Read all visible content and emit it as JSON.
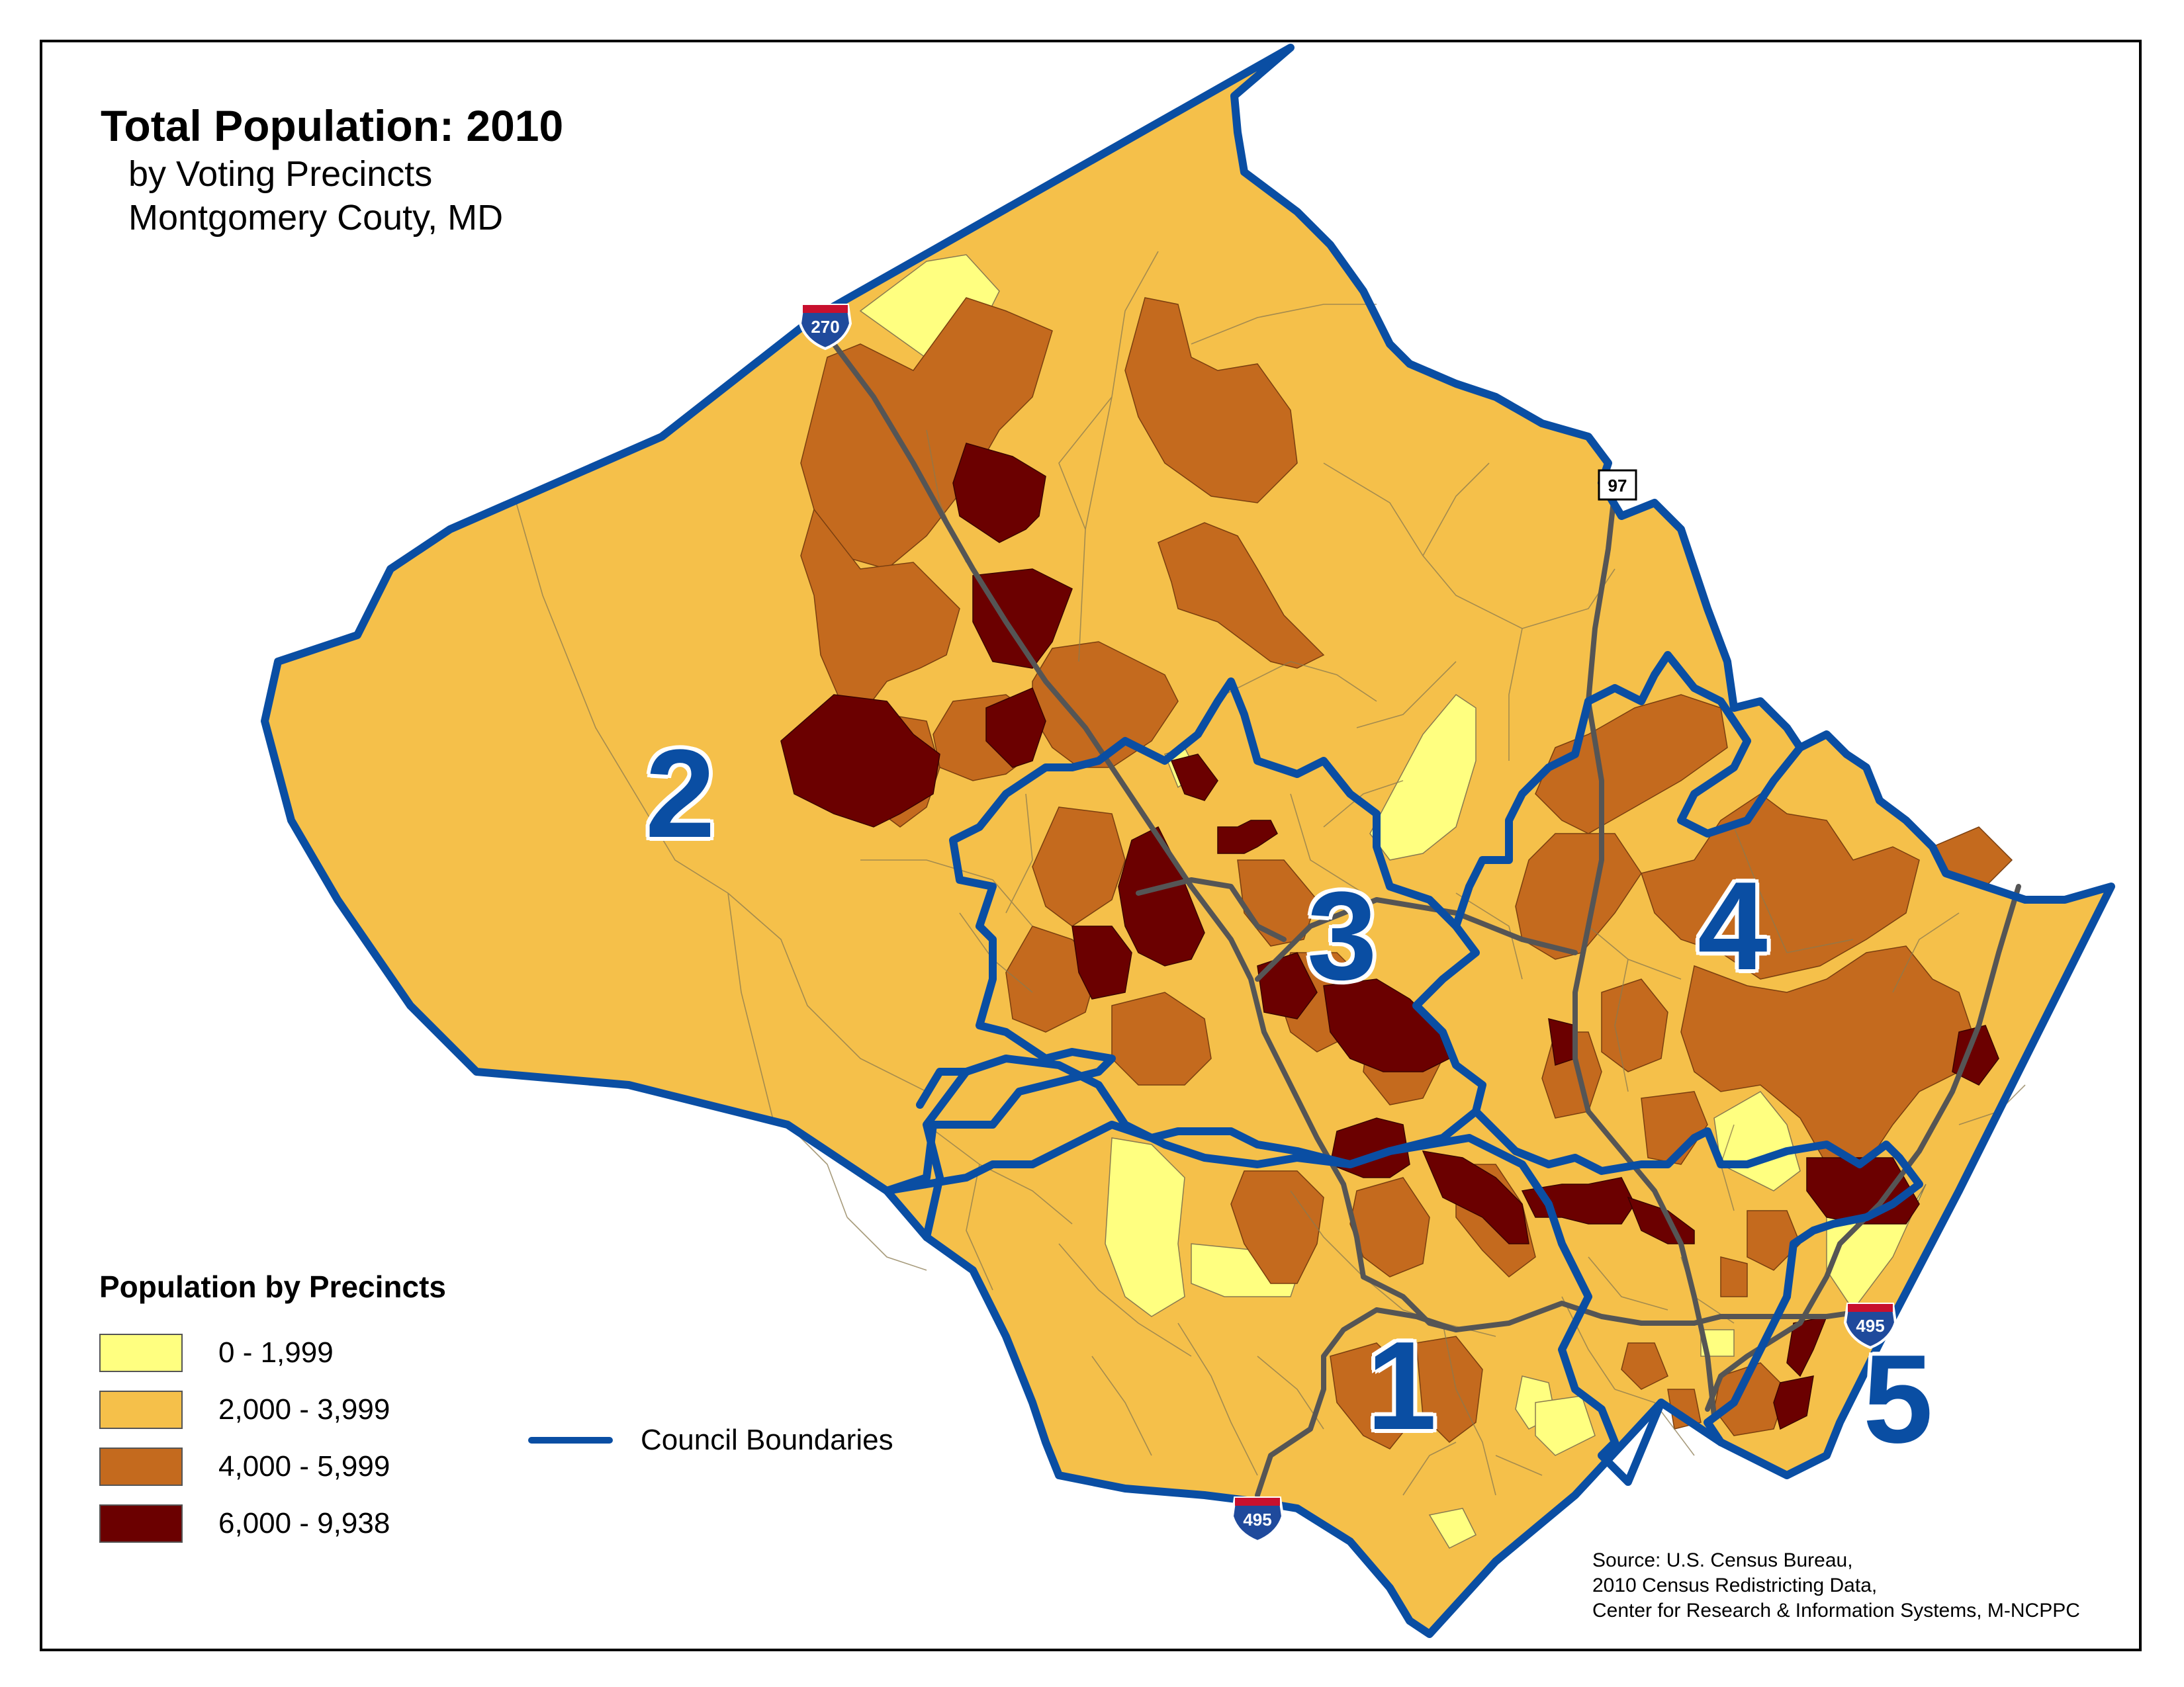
{
  "title": {
    "main": "Total Population: 2010",
    "sub1": "by Voting Precincts",
    "sub2": "Montgomery Couty, MD"
  },
  "legend": {
    "title": "Population by Precincts",
    "classes": [
      {
        "label": "0 - 1,999",
        "color": "#ffff80"
      },
      {
        "label": "2,000 - 3,999",
        "color": "#f5c04a"
      },
      {
        "label": "4,000 - 5,999",
        "color": "#c46a1e"
      },
      {
        "label": "6,000 - 9,938",
        "color": "#6b0000"
      }
    ]
  },
  "council_key": {
    "label": "Council Boundaries",
    "color": "#0a4ea3"
  },
  "districts": [
    "1",
    "2",
    "3",
    "4",
    "5"
  ],
  "highway_shields": [
    "270",
    "97",
    "495",
    "495"
  ],
  "source": {
    "line1": "Source: U.S. Census Bureau,",
    "line2": "2010 Census Redistricting Data,",
    "line3": "Center for Research & Information Systems, M-NCPPC"
  }
}
